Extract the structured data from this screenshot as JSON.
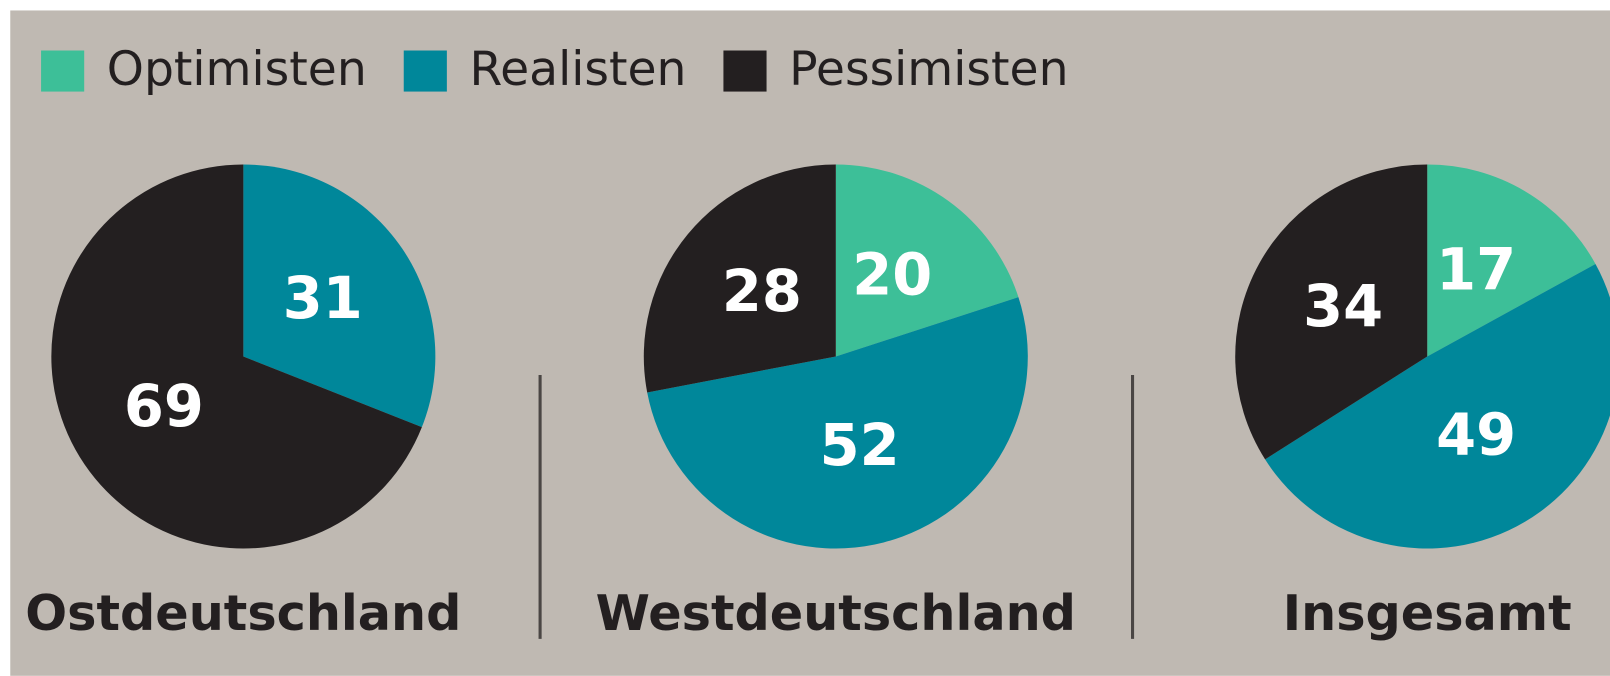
{
  "legend": {
    "labels": [
      "Optimisten",
      "Realisten",
      "Pessimisten"
    ],
    "colors": [
      "#3dbf98",
      "#00879a",
      "#231f20"
    ]
  },
  "chart_data": [
    {
      "type": "pie",
      "title": "Ostdeutschland",
      "values": [
        null,
        31,
        69
      ]
    },
    {
      "type": "pie",
      "title": "Westdeutschland",
      "values": [
        20,
        52,
        28
      ]
    },
    {
      "type": "pie",
      "title": "Insgesamt",
      "values": [
        17,
        49,
        34
      ]
    }
  ]
}
